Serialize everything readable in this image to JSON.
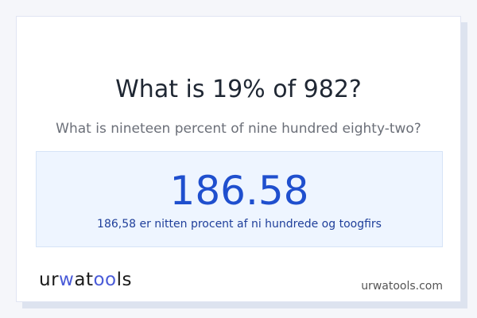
{
  "title": "What is 19% of 982?",
  "subtitle": "What is nineteen percent of nine hundred eighty-two?",
  "result": {
    "value": "186.58",
    "words": "186,58 er nitten procent af ni hundrede og toogfirs"
  },
  "footer": {
    "logo": "urwatools",
    "site": "urwatools.com"
  },
  "colors": {
    "accent": "#1f4fce",
    "result_bg": "#eef5ff",
    "page_bg": "#f5f6fa"
  }
}
